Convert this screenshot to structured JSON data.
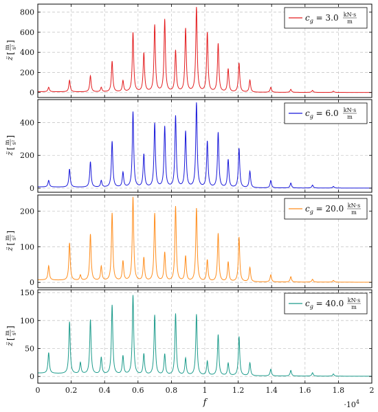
{
  "chart_data": {
    "type": "line",
    "shared_x": {
      "label": "f",
      "lim": [
        0,
        20000
      ],
      "ticks": [
        0,
        2000,
        4000,
        6000,
        8000,
        10000,
        12000,
        14000,
        16000,
        18000,
        20000
      ],
      "tick_labels": [
        "0",
        "0.2",
        "0.4",
        "0.6",
        "0.8",
        "1",
        "1.2",
        "1.4",
        "1.6",
        "1.8",
        "2"
      ],
      "multiplier": "·10",
      "multiplier_exp": "4"
    },
    "grid": true,
    "legend_position": "top-right",
    "peak_width": 50,
    "panels": [
      {
        "ylabel_var": "z̈",
        "ylabel_unit_num": "m",
        "ylabel_unit_den": "s²",
        "ylim": [
          -50,
          880
        ],
        "yticks": [
          0,
          200,
          400,
          600,
          800
        ],
        "legend": {
          "var": "c",
          "sub": "g",
          "eq": " = 3.0",
          "unit_num": "kN·s",
          "unit_den": "m"
        },
        "color": "#e31a1c",
        "baseline": 8,
        "peaks": [
          [
            650,
            45
          ],
          [
            1900,
            115
          ],
          [
            3150,
            160
          ],
          [
            3800,
            45
          ],
          [
            4450,
            305
          ],
          [
            5100,
            110
          ],
          [
            5700,
            590
          ],
          [
            6350,
            385
          ],
          [
            7000,
            665
          ],
          [
            7600,
            720
          ],
          [
            8250,
            410
          ],
          [
            8850,
            630
          ],
          [
            9500,
            840
          ],
          [
            10150,
            590
          ],
          [
            10800,
            480
          ],
          [
            11400,
            230
          ],
          [
            12050,
            290
          ],
          [
            12700,
            120
          ],
          [
            13950,
            50
          ],
          [
            15150,
            30
          ],
          [
            16450,
            20
          ],
          [
            17700,
            12
          ]
        ]
      },
      {
        "ylabel_var": "z̈",
        "ylabel_unit_num": "m",
        "ylabel_unit_den": "s²",
        "ylim": [
          -25,
          540
        ],
        "yticks": [
          0,
          200,
          400
        ],
        "legend": {
          "var": "c",
          "sub": "g",
          "eq": " = 6.0",
          "unit_num": "kN·s",
          "unit_den": "m"
        },
        "color": "#1515d9",
        "baseline": 8,
        "peaks": [
          [
            650,
            40
          ],
          [
            1900,
            110
          ],
          [
            3150,
            155
          ],
          [
            3800,
            40
          ],
          [
            4450,
            280
          ],
          [
            5100,
            90
          ],
          [
            5700,
            460
          ],
          [
            6350,
            200
          ],
          [
            7000,
            390
          ],
          [
            7600,
            370
          ],
          [
            8250,
            435
          ],
          [
            8850,
            340
          ],
          [
            9500,
            515
          ],
          [
            10150,
            280
          ],
          [
            10800,
            335
          ],
          [
            11400,
            170
          ],
          [
            12050,
            240
          ],
          [
            12700,
            100
          ],
          [
            13950,
            45
          ],
          [
            15150,
            30
          ],
          [
            16450,
            18
          ],
          [
            17700,
            10
          ]
        ]
      },
      {
        "ylabel_var": "z̈",
        "ylabel_unit_num": "m",
        "ylabel_unit_den": "s²",
        "ylim": [
          -15,
          245
        ],
        "yticks": [
          0,
          100,
          200
        ],
        "legend": {
          "var": "c",
          "sub": "g",
          "eq": " = 20.0",
          "unit_num": "kN·s",
          "unit_den": "m"
        },
        "color": "#ff8c1a",
        "baseline": 7,
        "peaks": [
          [
            650,
            40
          ],
          [
            1900,
            105
          ],
          [
            2550,
            15
          ],
          [
            3150,
            130
          ],
          [
            3800,
            40
          ],
          [
            4450,
            190
          ],
          [
            5100,
            55
          ],
          [
            5700,
            235
          ],
          [
            6350,
            65
          ],
          [
            7000,
            190
          ],
          [
            7600,
            80
          ],
          [
            8250,
            210
          ],
          [
            8850,
            70
          ],
          [
            9500,
            205
          ],
          [
            10150,
            60
          ],
          [
            10800,
            135
          ],
          [
            11400,
            55
          ],
          [
            12050,
            125
          ],
          [
            12700,
            40
          ],
          [
            13950,
            20
          ],
          [
            15150,
            15
          ],
          [
            16450,
            8
          ],
          [
            17700,
            5
          ]
        ]
      },
      {
        "ylabel_var": "z̈",
        "ylabel_unit_num": "m",
        "ylabel_unit_den": "s²",
        "ylim": [
          -12,
          155
        ],
        "yticks": [
          0,
          50,
          100,
          150
        ],
        "legend": {
          "var": "c",
          "sub": "g",
          "eq": " = 40.0",
          "unit_num": "kN·s",
          "unit_den": "m"
        },
        "color": "#1a9a8a",
        "baseline": 6,
        "peaks": [
          [
            650,
            37
          ],
          [
            1900,
            93
          ],
          [
            2550,
            20
          ],
          [
            3150,
            97
          ],
          [
            3800,
            30
          ],
          [
            4450,
            124
          ],
          [
            5100,
            33
          ],
          [
            5700,
            142
          ],
          [
            6350,
            37
          ],
          [
            7000,
            107
          ],
          [
            7600,
            37
          ],
          [
            8250,
            110
          ],
          [
            8850,
            30
          ],
          [
            9500,
            109
          ],
          [
            10150,
            25
          ],
          [
            10800,
            73
          ],
          [
            11400,
            22
          ],
          [
            12050,
            70
          ],
          [
            12700,
            23
          ],
          [
            13950,
            12
          ],
          [
            15150,
            10
          ],
          [
            16450,
            6
          ],
          [
            17700,
            4
          ]
        ]
      }
    ]
  }
}
